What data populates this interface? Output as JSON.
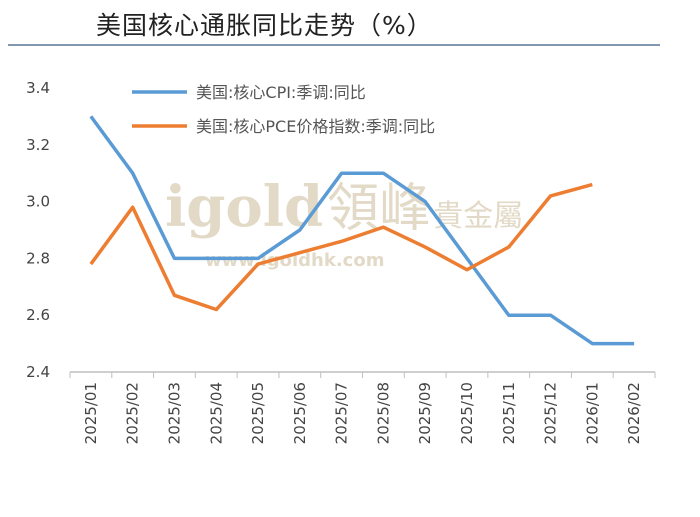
{
  "chart_data": {
    "type": "line",
    "title": "美国核心通胀同比走势（%）",
    "xlabel": "",
    "ylabel": "",
    "categories": [
      "2025/01",
      "2025/02",
      "2025/03",
      "2025/04",
      "2025/05",
      "2025/06",
      "2025/07",
      "2025/08",
      "2025/09",
      "2025/10",
      "2025/11",
      "2025/12",
      "2026/01",
      "2026/02"
    ],
    "ylim": [
      2.4,
      3.4
    ],
    "yticks": [
      "2.4",
      "2.6",
      "2.8",
      "3.0",
      "3.2",
      "3.4"
    ],
    "grid": false,
    "legend_position": "top-center",
    "series": [
      {
        "name": "美国:核心CPI:季调:同比",
        "color": "#5b9bd5",
        "values": [
          3.3,
          3.1,
          2.8,
          2.8,
          2.8,
          2.9,
          3.1,
          3.1,
          3.0,
          2.8,
          2.6,
          2.6,
          2.5,
          2.5
        ]
      },
      {
        "name": "美国:核心PCE价格指数:季调:同比",
        "color": "#ed7d31",
        "values": [
          2.78,
          2.98,
          2.67,
          2.62,
          2.78,
          2.82,
          2.86,
          2.91,
          2.84,
          2.76,
          2.84,
          3.02,
          3.06,
          null
        ]
      }
    ],
    "watermark": [
      "igold領峰貴金屬",
      "www.igoldhk.com"
    ]
  }
}
